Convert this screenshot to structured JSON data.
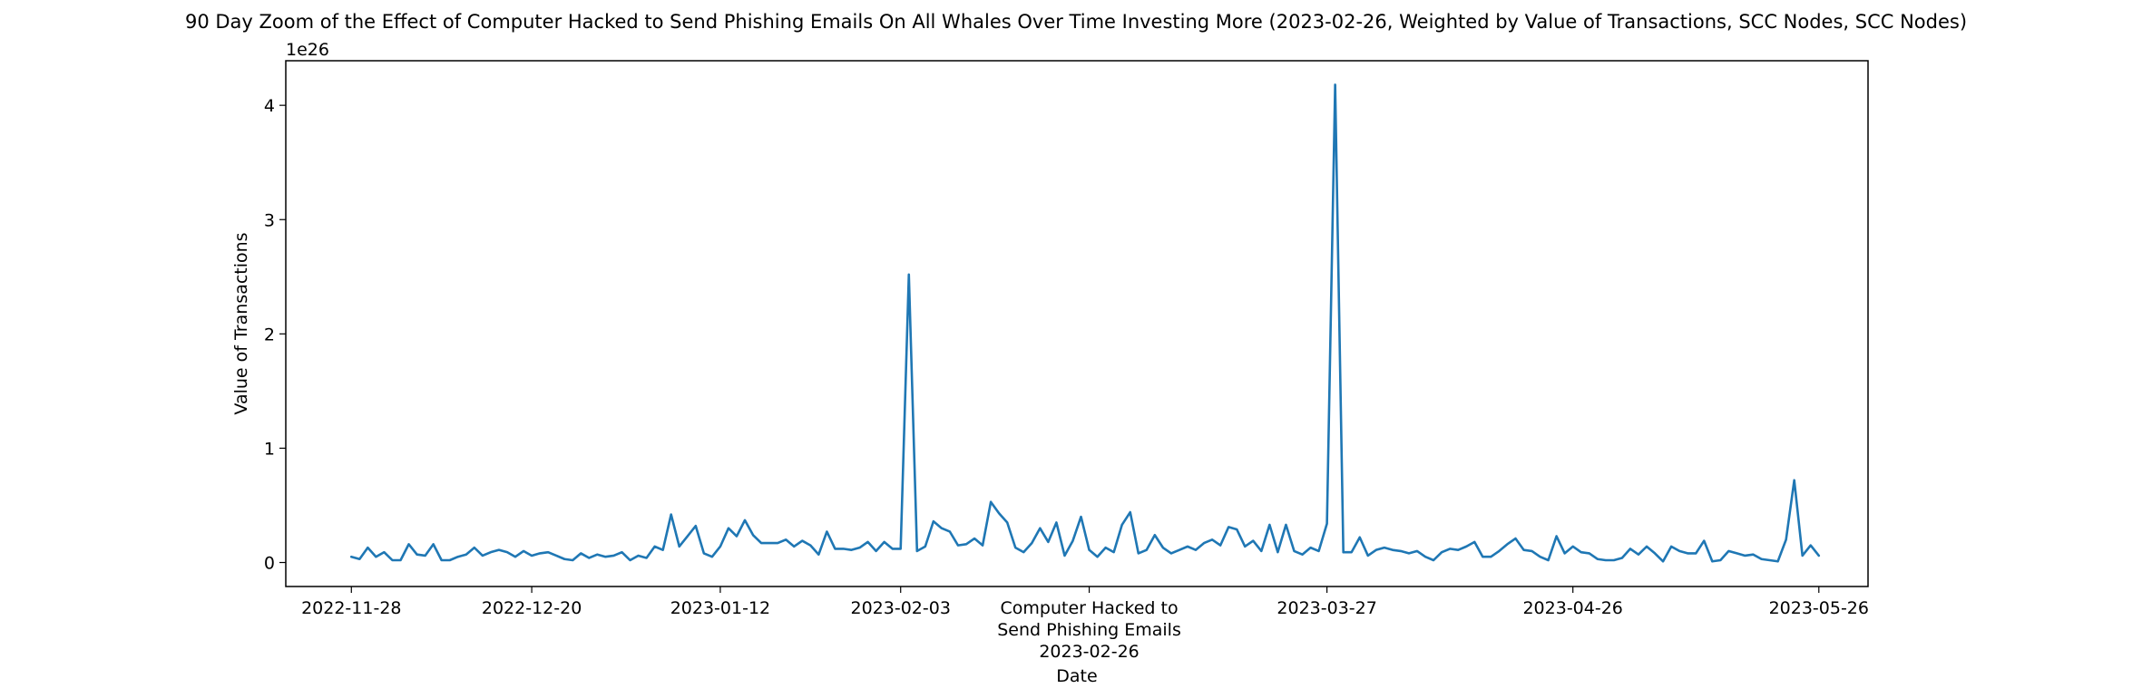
{
  "chart_data": {
    "type": "line",
    "title": "90 Day Zoom of the Effect of Computer Hacked to Send Phishing Emails On All Whales Over Time Investing More (2023-02-26, Weighted by Value of Transactions, SCC Nodes, SCC Nodes)",
    "xlabel": "Date",
    "ylabel": "Value of Transactions",
    "y_scale_label": "1e26",
    "y_multiplier": 1e+26,
    "ylim": [
      -0.21,
      4.39
    ],
    "xlim": [
      "2022-11-20",
      "2023-06-01"
    ],
    "x_ticks": [
      {
        "date": "2022-11-28",
        "label": "2022-11-28"
      },
      {
        "date": "2022-12-20",
        "label": "2022-12-20"
      },
      {
        "date": "2023-01-12",
        "label": "2023-01-12"
      },
      {
        "date": "2023-02-03",
        "label": "2023-02-03"
      },
      {
        "date": "2023-03-27",
        "label": "2023-03-27"
      },
      {
        "date": "2023-04-26",
        "label": "2023-04-26"
      },
      {
        "date": "2023-05-26",
        "label": "2023-05-26"
      }
    ],
    "y_ticks": [
      0,
      1,
      2,
      3,
      4
    ],
    "annotation": {
      "date": "2023-02-26",
      "lines": [
        "Computer Hacked to",
        "Send Phishing Emails",
        "2023-02-26"
      ]
    },
    "grid": false,
    "line_color": "#1f77b4",
    "series": [
      {
        "start": "2022-11-28",
        "step_days": 1,
        "values": [
          0.05,
          0.03,
          0.13,
          0.05,
          0.09,
          0.02,
          0.02,
          0.16,
          0.07,
          0.06,
          0.16,
          0.02,
          0.02,
          0.05,
          0.07,
          0.13,
          0.06,
          0.09,
          0.11,
          0.09,
          0.05,
          0.1,
          0.06,
          0.08,
          0.09,
          0.06,
          0.03,
          0.02,
          0.08,
          0.04,
          0.07,
          0.05,
          0.06,
          0.09,
          0.02,
          0.06,
          0.04,
          0.14,
          0.11,
          0.42,
          0.14,
          0.23,
          0.32,
          0.08,
          0.05,
          0.14,
          0.3,
          0.23,
          0.37,
          0.24,
          0.17,
          0.17,
          0.17,
          0.2,
          0.14,
          0.19,
          0.15,
          0.07,
          0.27,
          0.12,
          0.12,
          0.11,
          0.13,
          0.18,
          0.1,
          0.18,
          0.12,
          0.12,
          2.52,
          0.1,
          0.14,
          0.36,
          0.3,
          0.27,
          0.15,
          0.16,
          0.21,
          0.15,
          0.53,
          0.43,
          0.35,
          0.13,
          0.09,
          0.17,
          0.3,
          0.18,
          0.35,
          0.06,
          0.19,
          0.4,
          0.11,
          0.05,
          0.13,
          0.09,
          0.33,
          0.44,
          0.08,
          0.11,
          0.24,
          0.13,
          0.08,
          0.11,
          0.14,
          0.11,
          0.17,
          0.2,
          0.15,
          0.31,
          0.29,
          0.14,
          0.19,
          0.1,
          0.33,
          0.09,
          0.33,
          0.1,
          0.07,
          0.13,
          0.1,
          0.34,
          4.18,
          0.09,
          0.09,
          0.22,
          0.06,
          0.11,
          0.13,
          0.11,
          0.1,
          0.08,
          0.1,
          0.05,
          0.02,
          0.09,
          0.12,
          0.11,
          0.14,
          0.18,
          0.05,
          0.05,
          0.1,
          0.16,
          0.21,
          0.11,
          0.1,
          0.05,
          0.02,
          0.23,
          0.08,
          0.14,
          0.09,
          0.08,
          0.03,
          0.02,
          0.02,
          0.04,
          0.12,
          0.07,
          0.14,
          0.08,
          0.01,
          0.14,
          0.1,
          0.08,
          0.08,
          0.19,
          0.01,
          0.02,
          0.1,
          0.08,
          0.06,
          0.07,
          0.03,
          0.02,
          0.01,
          0.2,
          0.72,
          0.06,
          0.15,
          0.06
        ]
      }
    ]
  }
}
